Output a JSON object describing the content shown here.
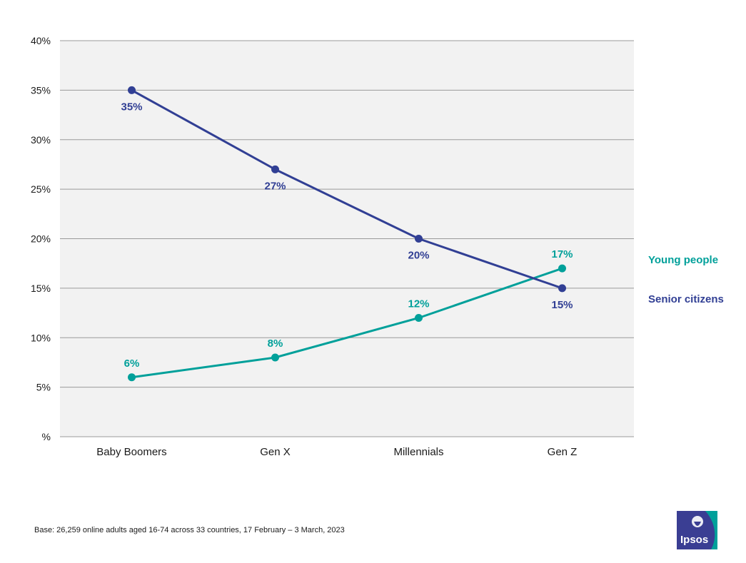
{
  "chart_data": {
    "type": "line",
    "categories": [
      "Baby Boomers",
      "Gen X",
      "Millennials",
      "Gen Z"
    ],
    "y_ticks": [
      "%",
      "5%",
      "10%",
      "15%",
      "20%",
      "25%",
      "30%",
      "35%",
      "40%"
    ],
    "ylim": [
      0,
      40
    ],
    "grid": true,
    "legend_placement": "right",
    "series": [
      {
        "name": "Young people",
        "color": "#00A09A",
        "values": [
          6,
          8,
          12,
          17
        ],
        "labels": [
          "6%",
          "8%",
          "12%",
          "17%"
        ],
        "label_position": "above"
      },
      {
        "name": "Senior citizens",
        "color": "#313F94",
        "values": [
          35,
          27,
          20,
          15
        ],
        "labels": [
          "35%",
          "27%",
          "20%",
          "15%"
        ],
        "label_position": "below"
      }
    ]
  },
  "footnote": "Base: 26,259 online adults aged 16-74 across 33 countries, 17 February – 3 March, 2023",
  "logo": {
    "text": "Ipsos",
    "color_primary": "#3A3E93",
    "color_accent": "#00A09A"
  }
}
